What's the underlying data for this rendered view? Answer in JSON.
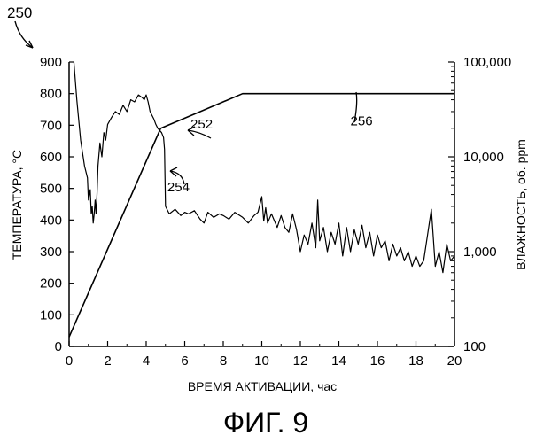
{
  "figure": {
    "ref_label": "250",
    "caption": "ФИГ. 9"
  },
  "chart_data": {
    "type": "line",
    "xlabel": "ВРЕМЯ АКТИВАЦИИ, час",
    "ylabel_left": "ТЕМПЕРАТУРА, °C",
    "ylabel_right": "ВЛАЖНОСТЬ, об. ppm",
    "xlim": [
      0,
      20
    ],
    "ylim_left": [
      0,
      900
    ],
    "ylim_right": [
      100,
      100000
    ],
    "right_scale": "log",
    "x_ticks": [
      "0",
      "2",
      "4",
      "6",
      "8",
      "10",
      "12",
      "14",
      "16",
      "18",
      "20"
    ],
    "y_ticks_left": [
      "0",
      "100",
      "200",
      "300",
      "400",
      "500",
      "600",
      "700",
      "800",
      "900"
    ],
    "y_ticks_right": [
      "100",
      "1,000",
      "10,000",
      "100,000"
    ],
    "grid": false,
    "annotations": [
      {
        "label": "252",
        "x": 6.3,
        "y": 690
      },
      {
        "label": "254",
        "x": 5.1,
        "y": 490
      },
      {
        "label": "256",
        "x": 14.6,
        "y": 700
      }
    ],
    "series": [
      {
        "id": "temperature",
        "axis": "left",
        "x": [
          0,
          4.75,
          9,
          20
        ],
        "y": [
          30,
          690,
          800,
          800
        ]
      },
      {
        "id": "moisture",
        "axis": "right",
        "x": [
          0.25,
          0.4,
          0.6,
          0.8,
          0.95,
          1.0,
          1.1,
          1.15,
          1.2,
          1.25,
          1.3,
          1.35,
          1.4,
          1.45,
          1.5,
          1.6,
          1.7,
          1.8,
          1.9,
          2.0,
          2.2,
          2.4,
          2.6,
          2.8,
          3.0,
          3.2,
          3.4,
          3.6,
          3.8,
          3.9,
          4.0,
          4.1,
          4.2,
          4.4,
          4.5,
          4.6,
          4.7,
          4.8,
          4.9,
          4.95,
          5.0,
          5.2,
          5.5,
          5.8,
          6.0,
          6.2,
          6.5,
          6.8,
          7.0,
          7.2,
          7.5,
          7.8,
          8.0,
          8.3,
          8.6,
          9.0,
          9.3,
          9.6,
          9.8,
          10.0,
          10.1,
          10.2,
          10.3,
          10.5,
          10.8,
          11.0,
          11.2,
          11.4,
          11.6,
          11.8,
          12.0,
          12.2,
          12.4,
          12.6,
          12.8,
          12.9,
          13.0,
          13.2,
          13.4,
          13.6,
          13.8,
          14.0,
          14.2,
          14.4,
          14.6,
          14.8,
          15.0,
          15.2,
          15.4,
          15.6,
          15.8,
          16.0,
          16.2,
          16.4,
          16.6,
          16.8,
          17.0,
          17.2,
          17.4,
          17.6,
          17.8,
          18.0,
          18.2,
          18.4,
          18.6,
          18.8,
          19.0,
          19.2,
          19.4,
          19.6,
          19.8,
          20.0
        ],
        "y": [
          100000,
          40000,
          15000,
          8000,
          6000,
          3500,
          4500,
          2500,
          3000,
          2000,
          2500,
          3500,
          2500,
          4000,
          8000,
          14000,
          10000,
          18000,
          15000,
          22000,
          26000,
          30000,
          28000,
          35000,
          30000,
          40000,
          38000,
          45000,
          42000,
          40000,
          45000,
          38000,
          30000,
          25000,
          22000,
          20000,
          19000,
          18000,
          16000,
          12000,
          3000,
          2500,
          2800,
          2400,
          2600,
          2500,
          2700,
          2200,
          2000,
          2600,
          2300,
          2500,
          2400,
          2200,
          2600,
          2300,
          2000,
          2400,
          2600,
          3800,
          2100,
          2900,
          2000,
          2500,
          1800,
          2400,
          1800,
          1600,
          2500,
          1700,
          1000,
          1500,
          1200,
          2000,
          1100,
          3500,
          1300,
          1800,
          1000,
          1600,
          1200,
          2000,
          900,
          1800,
          1000,
          1700,
          1200,
          1900,
          1100,
          1600,
          900,
          1500,
          1100,
          1300,
          800,
          1200,
          900,
          1100,
          800,
          1000,
          700,
          900,
          700,
          800,
          1500,
          2800,
          700,
          1000,
          600,
          1200,
          800,
          900
        ]
      }
    ]
  }
}
